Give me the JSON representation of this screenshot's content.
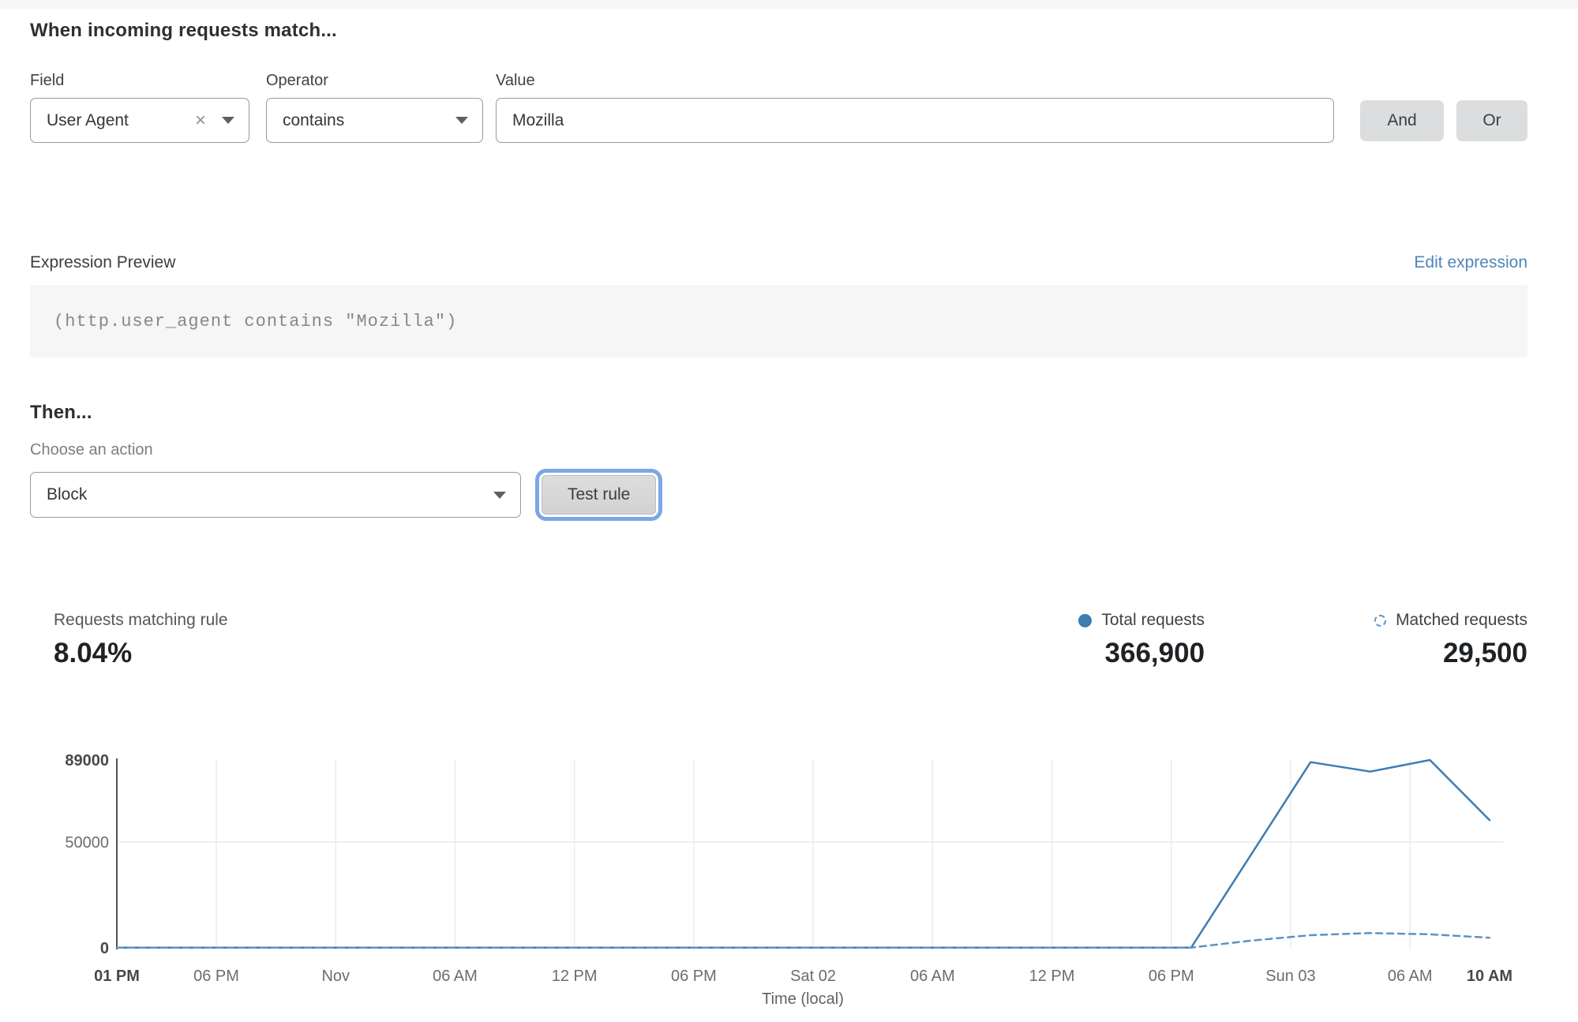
{
  "rule_builder": {
    "title": "When incoming requests match...",
    "field": {
      "label": "Field",
      "value": "User Agent"
    },
    "operator": {
      "label": "Operator",
      "value": "contains"
    },
    "value": {
      "label": "Value",
      "value": "Mozilla"
    },
    "and_label": "And",
    "or_label": "Or"
  },
  "expression": {
    "label": "Expression Preview",
    "edit_link": "Edit expression",
    "code": "(http.user_agent contains \"Mozilla\")"
  },
  "action": {
    "title": "Then...",
    "choose_label": "Choose an action",
    "selected": "Block",
    "test_button": "Test rule"
  },
  "stats": {
    "matching": {
      "label": "Requests matching rule",
      "value": "8.04%"
    },
    "total": {
      "label": "Total requests",
      "value": "366,900"
    },
    "matched": {
      "label": "Matched requests",
      "value": "29,500"
    }
  },
  "colors": {
    "accent_blue": "#3e7cb0",
    "dashed_blue": "#5b93c4",
    "link_blue": "#4d86ba",
    "focus_ring": "#7da6e8",
    "button_gray": "#dcddde",
    "code_bg": "#f6f6f7"
  },
  "chart_data": {
    "type": "line",
    "title": "",
    "xlabel": "Time (local)",
    "ylabel": "",
    "ylim": [
      0,
      89000
    ],
    "grid": true,
    "legend_position": "above-right",
    "x_unit": "hours since Thu Oct 31 01 PM",
    "y_ticks": [
      {
        "value": 89000,
        "label": "89000",
        "bold": true
      },
      {
        "value": 50000,
        "label": "50000",
        "bold": false
      },
      {
        "value": 0,
        "label": "0",
        "bold": true
      }
    ],
    "x_ticks": [
      {
        "h": 0,
        "label": "01 PM",
        "bold": true
      },
      {
        "h": 5,
        "label": "06 PM",
        "bold": false
      },
      {
        "h": 11,
        "label": "Nov",
        "bold": false
      },
      {
        "h": 17,
        "label": "06 AM",
        "bold": false
      },
      {
        "h": 23,
        "label": "12 PM",
        "bold": false
      },
      {
        "h": 29,
        "label": "06 PM",
        "bold": false
      },
      {
        "h": 35,
        "label": "Sat 02",
        "bold": false
      },
      {
        "h": 41,
        "label": "06 AM",
        "bold": false
      },
      {
        "h": 47,
        "label": "12 PM",
        "bold": false
      },
      {
        "h": 53,
        "label": "06 PM",
        "bold": false
      },
      {
        "h": 59,
        "label": "Sun 03",
        "bold": false
      },
      {
        "h": 65,
        "label": "06 AM",
        "bold": false
      },
      {
        "h": 69,
        "label": "10 AM",
        "bold": true
      }
    ],
    "series": [
      {
        "name": "Total requests",
        "style": "solid",
        "points": [
          [
            0,
            100
          ],
          [
            3,
            100
          ],
          [
            6,
            100
          ],
          [
            9,
            100
          ],
          [
            12,
            100
          ],
          [
            15,
            100
          ],
          [
            18,
            100
          ],
          [
            21,
            100
          ],
          [
            24,
            100
          ],
          [
            27,
            100
          ],
          [
            30,
            100
          ],
          [
            33,
            100
          ],
          [
            36,
            100
          ],
          [
            39,
            100
          ],
          [
            42,
            100
          ],
          [
            45,
            100
          ],
          [
            48,
            100
          ],
          [
            51,
            100
          ],
          [
            54,
            100
          ],
          [
            57,
            44000
          ],
          [
            60,
            88000
          ],
          [
            63,
            83500
          ],
          [
            66,
            89000
          ],
          [
            69,
            60500
          ]
        ]
      },
      {
        "name": "Matched requests",
        "style": "dashed",
        "points": [
          [
            0,
            100
          ],
          [
            3,
            100
          ],
          [
            6,
            100
          ],
          [
            9,
            100
          ],
          [
            12,
            100
          ],
          [
            15,
            100
          ],
          [
            18,
            100
          ],
          [
            21,
            100
          ],
          [
            24,
            100
          ],
          [
            27,
            100
          ],
          [
            30,
            100
          ],
          [
            33,
            100
          ],
          [
            36,
            100
          ],
          [
            39,
            100
          ],
          [
            42,
            100
          ],
          [
            45,
            100
          ],
          [
            48,
            100
          ],
          [
            51,
            100
          ],
          [
            54,
            100
          ],
          [
            57,
            3400
          ],
          [
            60,
            6000
          ],
          [
            63,
            7000
          ],
          [
            66,
            6400
          ],
          [
            69,
            4800
          ]
        ]
      }
    ]
  }
}
